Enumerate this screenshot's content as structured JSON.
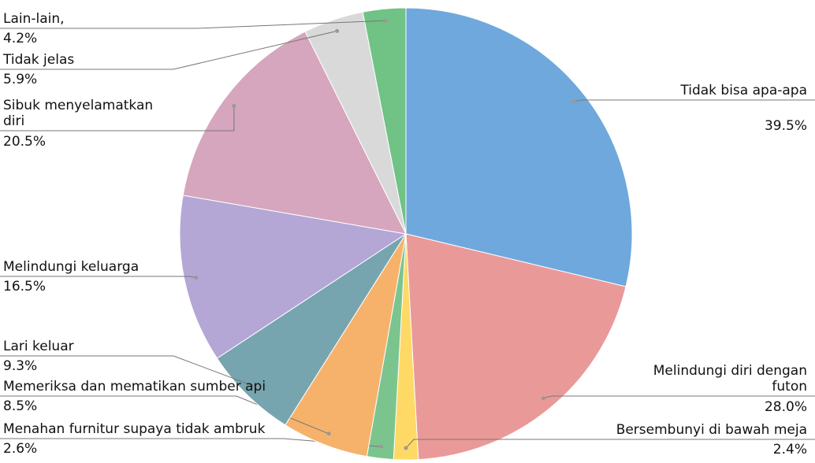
{
  "chart_data": {
    "type": "pie",
    "categories": [
      "Tidak bisa apa-apa",
      "Melindungi diri dengan futon",
      "Bersembunyi di bawah meja",
      "Menahan furnitur supaya tidak ambruk",
      "Memeriksa dan mematikan sumber api",
      "Lari keluar",
      "Melindungi keluarga",
      "Sibuk menyelamatkan diri",
      "Tidak jelas",
      "Lain-lain,"
    ],
    "values": [
      39.5,
      28.0,
      2.4,
      2.6,
      8.5,
      9.3,
      16.5,
      20.5,
      5.9,
      4.2
    ],
    "value_labels": [
      "39.5%",
      "28.0%",
      "2.4%",
      "2.6%",
      "8.5%",
      "9.3%",
      "16.5%",
      "20.5%",
      "5.9%",
      "4.2%"
    ],
    "colors": [
      "#6fa8dc",
      "#ea9999",
      "#ffd966",
      "#7cc48e",
      "#f6b26b",
      "#76a5af",
      "#b4a7d6",
      "#d5a6bd",
      "#d9d9d9",
      "#70c285"
    ]
  }
}
